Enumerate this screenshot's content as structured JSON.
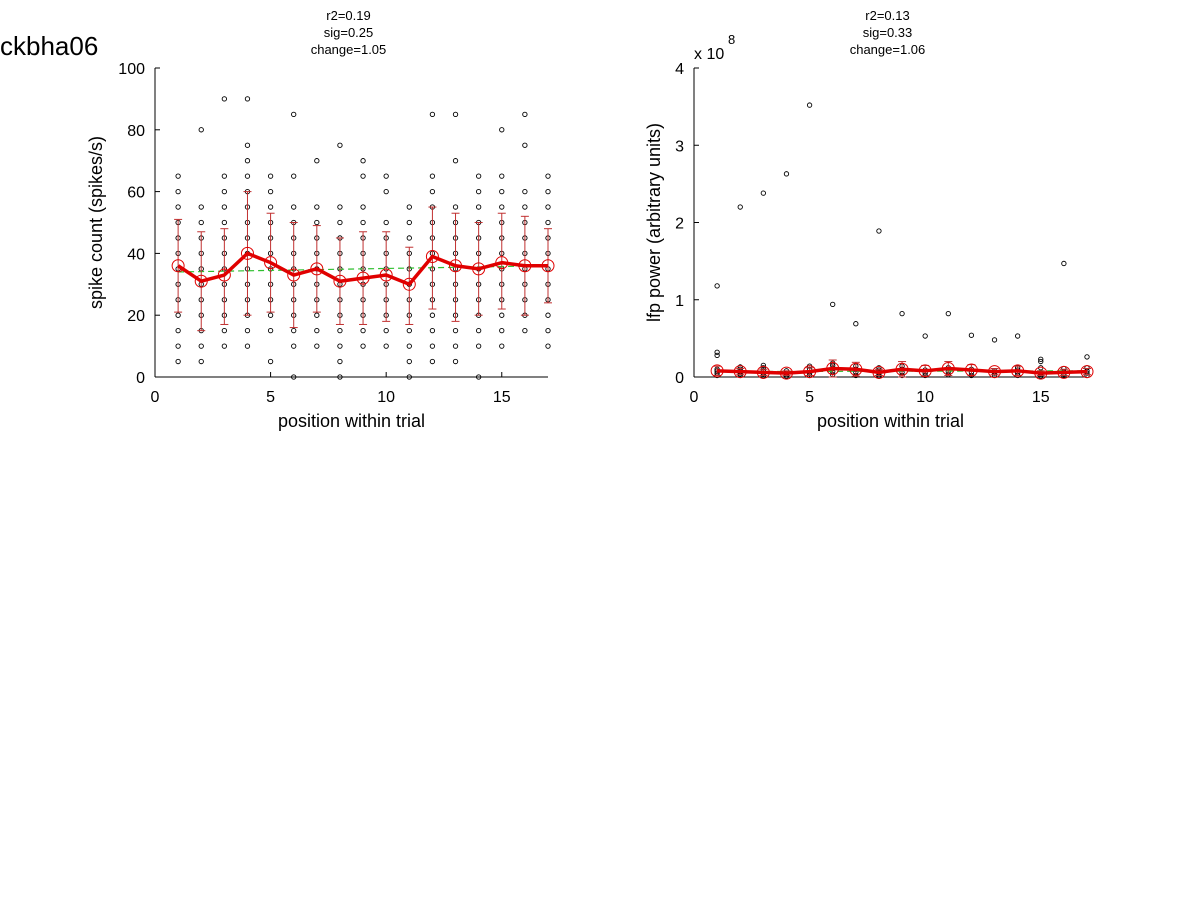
{
  "page": {
    "cell_name": "ckbha06"
  },
  "colors": {
    "mean_line": "#e00000",
    "errorbar": "#c03030",
    "fit_line": "#2fbf2f",
    "points": "#000000"
  },
  "chart_data": [
    {
      "type": "scatter",
      "stats": [
        "r2=0.19",
        "sig=0.25",
        "change=1.05"
      ],
      "xlabel": "position within trial",
      "ylabel": "spike count (spikes/s)",
      "xlim": [
        0,
        17
      ],
      "ylim": [
        0,
        100
      ],
      "xticks": [
        0,
        5,
        10,
        15
      ],
      "yticks": [
        0,
        20,
        40,
        60,
        80,
        100
      ],
      "exponent_label": "",
      "x": [
        1,
        2,
        3,
        4,
        5,
        6,
        7,
        8,
        9,
        10,
        11,
        12,
        13,
        14,
        15,
        16,
        17
      ],
      "mean": [
        36,
        31,
        33,
        40,
        37,
        33,
        35,
        31,
        32,
        33,
        30,
        39,
        36,
        35,
        37,
        36,
        36
      ],
      "err_lo": [
        21,
        15,
        17,
        20,
        21,
        16,
        21,
        17,
        17,
        18,
        17,
        22,
        18,
        20,
        22,
        20,
        24
      ],
      "err_hi": [
        51,
        47,
        48,
        60,
        53,
        50,
        49,
        45,
        47,
        47,
        42,
        55,
        53,
        50,
        53,
        52,
        48
      ],
      "fit": [
        34,
        36
      ],
      "scatter": [
        [
          1,
          [
            5,
            10,
            15,
            20,
            25,
            30,
            35,
            40,
            45,
            50,
            55,
            60,
            65
          ]
        ],
        [
          2,
          [
            5,
            10,
            15,
            20,
            25,
            30,
            35,
            40,
            45,
            50,
            55,
            80
          ]
        ],
        [
          3,
          [
            10,
            15,
            20,
            25,
            30,
            35,
            40,
            45,
            50,
            55,
            60,
            65,
            90
          ]
        ],
        [
          4,
          [
            10,
            15,
            20,
            25,
            30,
            35,
            40,
            45,
            50,
            55,
            60,
            65,
            70,
            75,
            90
          ]
        ],
        [
          5,
          [
            5,
            15,
            20,
            25,
            30,
            35,
            40,
            45,
            50,
            55,
            60,
            65
          ]
        ],
        [
          6,
          [
            0,
            10,
            15,
            20,
            25,
            30,
            35,
            40,
            45,
            50,
            55,
            65,
            85
          ]
        ],
        [
          7,
          [
            10,
            15,
            20,
            25,
            30,
            35,
            40,
            45,
            50,
            55,
            70
          ]
        ],
        [
          8,
          [
            0,
            5,
            10,
            15,
            20,
            25,
            30,
            35,
            40,
            45,
            50,
            55,
            75
          ]
        ],
        [
          9,
          [
            10,
            15,
            20,
            25,
            30,
            35,
            40,
            45,
            50,
            55,
            65,
            70
          ]
        ],
        [
          10,
          [
            10,
            15,
            20,
            25,
            30,
            35,
            40,
            45,
            50,
            60,
            65
          ]
        ],
        [
          11,
          [
            0,
            5,
            10,
            15,
            20,
            25,
            30,
            35,
            40,
            45,
            50,
            55
          ]
        ],
        [
          12,
          [
            5,
            10,
            15,
            20,
            25,
            30,
            35,
            40,
            45,
            50,
            55,
            60,
            65,
            85
          ]
        ],
        [
          13,
          [
            5,
            10,
            15,
            20,
            25,
            30,
            35,
            40,
            45,
            50,
            55,
            70,
            85
          ]
        ],
        [
          14,
          [
            0,
            10,
            15,
            20,
            25,
            30,
            35,
            40,
            45,
            50,
            55,
            60,
            65
          ]
        ],
        [
          15,
          [
            10,
            15,
            20,
            25,
            30,
            35,
            40,
            45,
            50,
            55,
            60,
            65,
            80
          ]
        ],
        [
          16,
          [
            15,
            20,
            25,
            30,
            35,
            40,
            45,
            50,
            55,
            60,
            75,
            85
          ]
        ],
        [
          17,
          [
            10,
            15,
            20,
            25,
            30,
            35,
            40,
            45,
            50,
            55,
            60,
            65
          ]
        ]
      ]
    },
    {
      "type": "scatter",
      "stats": [
        "r2=0.13",
        "sig=0.33",
        "change=1.06"
      ],
      "xlabel": "position within trial",
      "ylabel": "lfp power (arbitrary units)",
      "xlim": [
        0,
        17
      ],
      "ylim": [
        0,
        4
      ],
      "xticks": [
        0,
        5,
        10,
        15
      ],
      "yticks": [
        0,
        1,
        2,
        3,
        4
      ],
      "exponent_label": "x 10",
      "exponent_power": "8",
      "x": [
        1,
        2,
        3,
        4,
        5,
        6,
        7,
        8,
        9,
        10,
        11,
        12,
        13,
        14,
        15,
        16,
        17
      ],
      "mean": [
        0.08,
        0.07,
        0.06,
        0.05,
        0.07,
        0.11,
        0.1,
        0.06,
        0.1,
        0.08,
        0.11,
        0.09,
        0.07,
        0.08,
        0.05,
        0.06,
        0.07
      ],
      "err_lo": [
        0.02,
        0.03,
        0.02,
        0.02,
        0.02,
        0.0,
        0.01,
        0.02,
        0.0,
        0.01,
        0.02,
        0.02,
        0.03,
        0.02,
        0.02,
        0.02,
        0.03
      ],
      "err_hi": [
        0.14,
        0.11,
        0.1,
        0.08,
        0.12,
        0.22,
        0.19,
        0.1,
        0.2,
        0.15,
        0.2,
        0.16,
        0.11,
        0.14,
        0.08,
        0.1,
        0.11
      ],
      "fit": [
        0.07,
        0.08
      ],
      "scatter": [
        [
          1,
          [
            0.02,
            0.05,
            0.08,
            0.1,
            0.28,
            0.32,
            1.18
          ]
        ],
        [
          2,
          [
            0.02,
            0.04,
            0.07,
            0.1,
            0.13,
            2.2
          ]
        ],
        [
          3,
          [
            0.01,
            0.04,
            0.08,
            0.12,
            0.15,
            2.38
          ]
        ],
        [
          4,
          [
            0.01,
            0.03,
            0.05,
            0.08,
            2.63
          ]
        ],
        [
          5,
          [
            0.02,
            0.05,
            0.1,
            0.14,
            3.52
          ]
        ],
        [
          6,
          [
            0.03,
            0.07,
            0.11,
            0.15,
            0.18,
            0.94
          ]
        ],
        [
          7,
          [
            0.02,
            0.06,
            0.1,
            0.14,
            0.69
          ]
        ],
        [
          8,
          [
            0.01,
            0.03,
            0.06,
            0.09,
            0.12,
            1.89
          ]
        ],
        [
          9,
          [
            0.02,
            0.06,
            0.1,
            0.14,
            0.82
          ]
        ],
        [
          10,
          [
            0.02,
            0.05,
            0.09,
            0.53
          ]
        ],
        [
          11,
          [
            0.03,
            0.07,
            0.12,
            0.82
          ]
        ],
        [
          12,
          [
            0.02,
            0.06,
            0.1,
            0.54
          ]
        ],
        [
          13,
          [
            0.02,
            0.05,
            0.08,
            0.48
          ]
        ],
        [
          14,
          [
            0.02,
            0.05,
            0.09,
            0.12,
            0.53
          ]
        ],
        [
          15,
          [
            0.01,
            0.03,
            0.06,
            0.12,
            0.2,
            0.23
          ]
        ],
        [
          16,
          [
            0.02,
            0.04,
            0.07,
            0.11,
            1.47
          ]
        ],
        [
          17,
          [
            0.02,
            0.05,
            0.08,
            0.12,
            0.26
          ]
        ]
      ]
    }
  ]
}
